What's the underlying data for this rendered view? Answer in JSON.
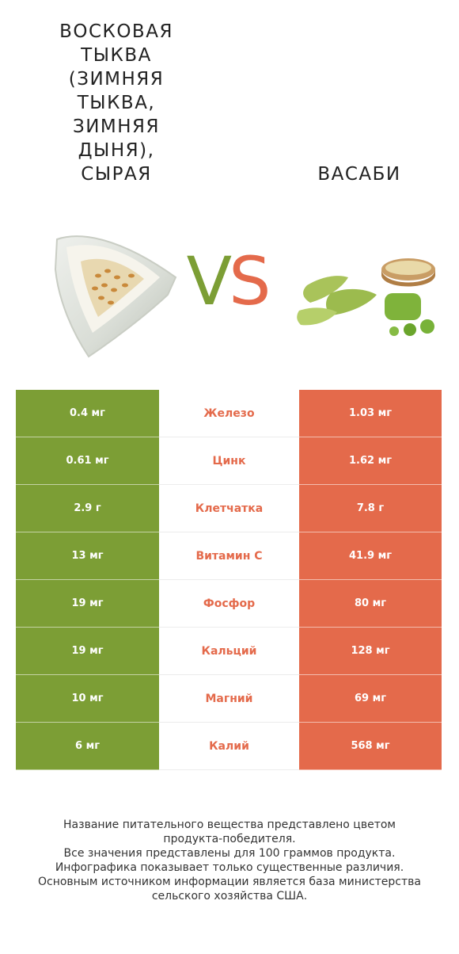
{
  "header": {
    "left_title": "ВОСКОВАЯ\nТЫКВА\n(ЗИМНЯЯ\nТЫКВА,\nЗИМНЯЯ\nДЫНЯ),\nСЫРАЯ",
    "right_title": "ВАСАБИ",
    "vs_v": "V",
    "vs_s": "S"
  },
  "colors": {
    "left_winner": "#7c9e35",
    "right_winner": "#e46a4b"
  },
  "rows": [
    {
      "left": "0.4 мг",
      "nutrient": "Железо",
      "right": "1.03 мг",
      "winner": "right"
    },
    {
      "left": "0.61 мг",
      "nutrient": "Цинк",
      "right": "1.62 мг",
      "winner": "right"
    },
    {
      "left": "2.9 г",
      "nutrient": "Клетчатка",
      "right": "7.8 г",
      "winner": "right"
    },
    {
      "left": "13 мг",
      "nutrient": "Витамин C",
      "right": "41.9 мг",
      "winner": "right"
    },
    {
      "left": "19 мг",
      "nutrient": "Фосфор",
      "right": "80 мг",
      "winner": "right"
    },
    {
      "left": "19 мг",
      "nutrient": "Кальций",
      "right": "128 мг",
      "winner": "right"
    },
    {
      "left": "10 мг",
      "nutrient": "Магний",
      "right": "69 мг",
      "winner": "right"
    },
    {
      "left": "6 мг",
      "nutrient": "Калий",
      "right": "568 мг",
      "winner": "right"
    }
  ],
  "footer": {
    "line1": "Название питательного вещества представлено цветом",
    "line2": "продукта-победителя.",
    "line3": "Все значения представлены для 100 граммов продукта.",
    "line4": "Инфографика показывает только существенные различия.",
    "line5": "Основным источником информации является база министерства",
    "line6": "сельского хозяйства США."
  }
}
